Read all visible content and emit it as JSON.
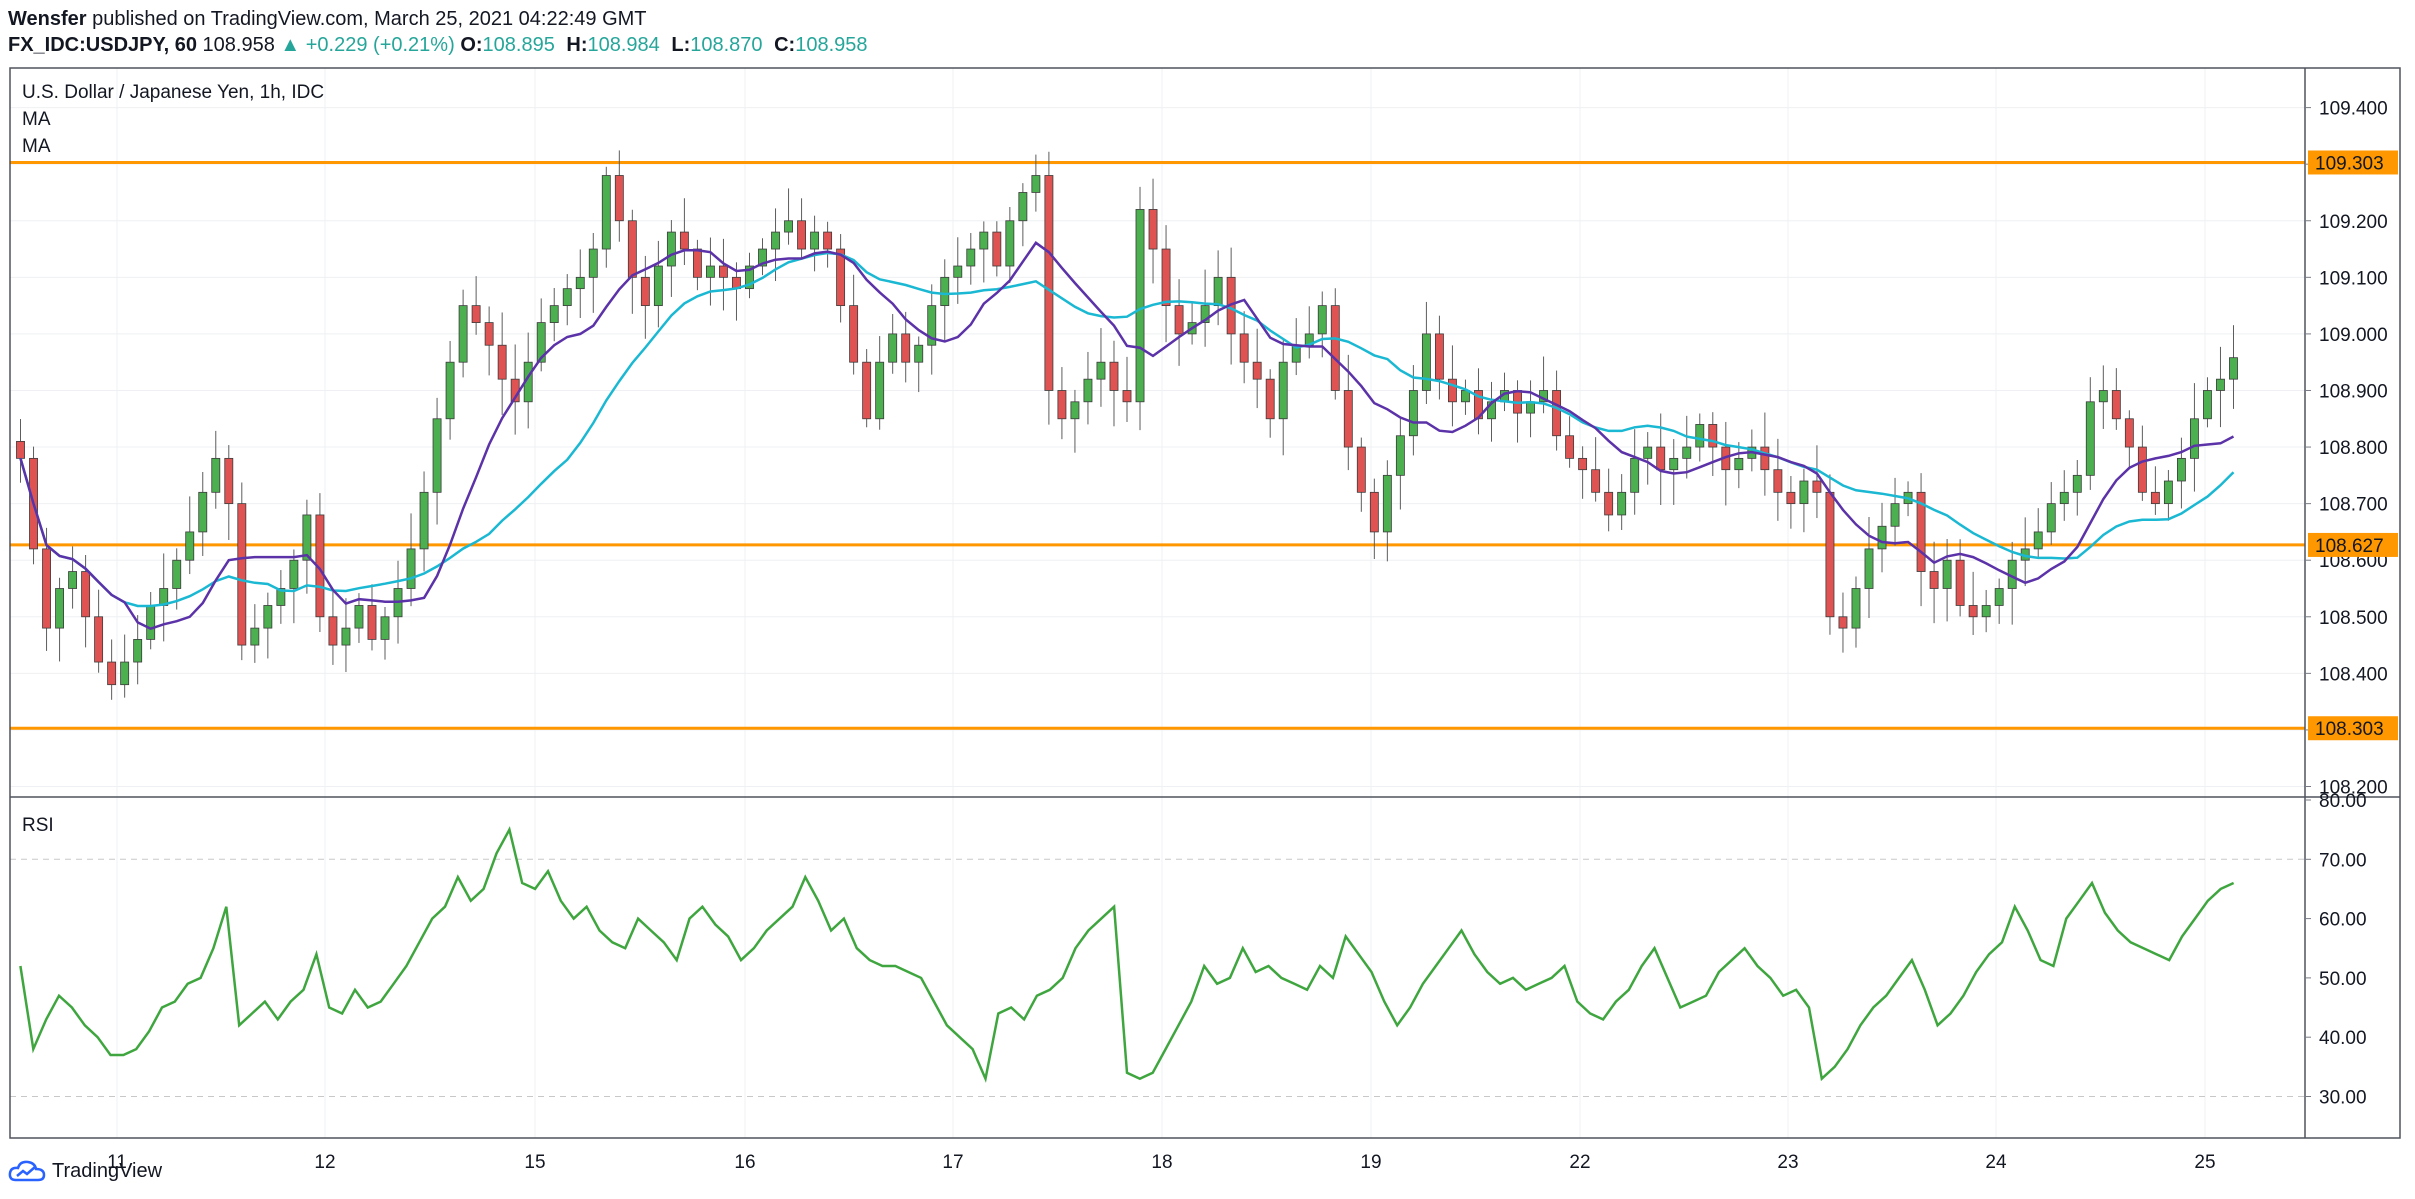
{
  "header": {
    "author": "Wensfer",
    "published_text": "published on TradingView.com, March 25, 2021 04:22:49 GMT",
    "symbol": "FX_IDC:USDJPY, 60",
    "last": "108.958",
    "change": "+0.229 (+0.21%)",
    "o_label": "O:",
    "o_value": "108.895",
    "h_label": "H:",
    "h_value": "108.984",
    "l_label": "L:",
    "l_value": "108.870",
    "c_label": "C:",
    "c_value": "108.958"
  },
  "legend": {
    "title": "U.S. Dollar / Japanese Yen, 1h, IDC",
    "ma1": "MA",
    "ma2": "MA",
    "rsi": "RSI"
  },
  "footer": {
    "brand": "TradingView"
  },
  "colors": {
    "up": "#4caf50",
    "down": "#e05353",
    "candle_border": "#5d5d5d",
    "ma_fast": "#5b32a8",
    "ma_slow": "#1ab8d2",
    "rsi": "#3fa63f",
    "level": "#ff9800",
    "grid": "#eef0f3"
  },
  "chart_data": [
    {
      "type": "candlestick",
      "title": "U.S. Dollar / Japanese Yen, 1h, IDC",
      "x_tick_labels": [
        "11",
        "12",
        "15",
        "16",
        "17",
        "18",
        "19",
        "22",
        "23",
        "24",
        "25"
      ],
      "y_tick_labels": [
        "109.400",
        "109.300",
        "109.200",
        "109.100",
        "109.000",
        "108.900",
        "108.800",
        "108.700",
        "108.600",
        "108.500",
        "108.400",
        "108.300",
        "108.200"
      ],
      "ylim": [
        108.185,
        109.47
      ],
      "horizontal_levels": [
        {
          "value": 109.303,
          "label": "109.303"
        },
        {
          "value": 108.627,
          "label": "108.627"
        },
        {
          "value": 108.303,
          "label": "108.303"
        }
      ],
      "close_series_approx": [
        108.78,
        108.62,
        108.48,
        108.55,
        108.58,
        108.5,
        108.42,
        108.38,
        108.42,
        108.46,
        108.52,
        108.55,
        108.6,
        108.65,
        108.72,
        108.78,
        108.7,
        108.45,
        108.48,
        108.52,
        108.55,
        108.6,
        108.68,
        108.5,
        108.45,
        108.48,
        108.52,
        108.46,
        108.5,
        108.55,
        108.62,
        108.72,
        108.85,
        108.95,
        109.05,
        109.02,
        108.98,
        108.92,
        108.88,
        108.95,
        109.02,
        109.05,
        109.08,
        109.1,
        109.15,
        109.28,
        109.2,
        109.1,
        109.05,
        109.12,
        109.18,
        109.15,
        109.1,
        109.12,
        109.1,
        109.08,
        109.12,
        109.15,
        109.18,
        109.2,
        109.15,
        109.18,
        109.15,
        109.05,
        108.95,
        108.85,
        108.95,
        109.0,
        108.95,
        108.98,
        109.05,
        109.1,
        109.12,
        109.15,
        109.18,
        109.12,
        109.2,
        109.25,
        109.28,
        108.9,
        108.85,
        108.88,
        108.92,
        108.95,
        108.9,
        108.88,
        109.22,
        109.15,
        109.05,
        109.0,
        109.02,
        109.05,
        109.1,
        109.0,
        108.95,
        108.92,
        108.85,
        108.95,
        108.98,
        109.0,
        109.05,
        108.9,
        108.8,
        108.72,
        108.65,
        108.75,
        108.82,
        108.9,
        109.0,
        108.92,
        108.88,
        108.9,
        108.85,
        108.88,
        108.9,
        108.86,
        108.88,
        108.9,
        108.82,
        108.78,
        108.76,
        108.72,
        108.68,
        108.72,
        108.78,
        108.8,
        108.76,
        108.78,
        108.8,
        108.84,
        108.8,
        108.76,
        108.78,
        108.8,
        108.76,
        108.72,
        108.7,
        108.74,
        108.72,
        108.5,
        108.48,
        108.55,
        108.62,
        108.66,
        108.7,
        108.72,
        108.58,
        108.55,
        108.6,
        108.52,
        108.5,
        108.52,
        108.55,
        108.6,
        108.62,
        108.65,
        108.7,
        108.72,
        108.75,
        108.88,
        108.9,
        108.85,
        108.8,
        108.72,
        108.7,
        108.74,
        108.78,
        108.85,
        108.9,
        108.92,
        108.958
      ],
      "rsi_ylim": [
        23,
        80
      ],
      "rsi_tick_labels": [
        "80.00",
        "70.00",
        "60.00",
        "50.00",
        "40.00",
        "30.00"
      ],
      "rsi_series_approx": [
        52,
        38,
        43,
        47,
        45,
        42,
        40,
        37,
        37,
        38,
        41,
        45,
        46,
        49,
        50,
        55,
        62,
        42,
        44,
        46,
        43,
        46,
        48,
        54,
        45,
        44,
        48,
        45,
        46,
        49,
        52,
        56,
        60,
        62,
        67,
        63,
        65,
        71,
        75,
        66,
        65,
        68,
        63,
        60,
        62,
        58,
        56,
        55,
        60,
        58,
        56,
        53,
        60,
        62,
        59,
        57,
        53,
        55,
        58,
        60,
        62,
        67,
        63,
        58,
        60,
        55,
        53,
        52,
        52,
        51,
        50,
        46,
        42,
        40,
        38,
        33,
        44,
        45,
        43,
        47,
        48,
        50,
        55,
        58,
        60,
        62,
        34,
        33,
        34,
        38,
        42,
        46,
        52,
        49,
        50,
        55,
        51,
        52,
        50,
        49,
        48,
        52,
        50,
        57,
        54,
        51,
        46,
        42,
        45,
        49,
        52,
        55,
        58,
        54,
        51,
        49,
        50,
        48,
        49,
        50,
        52,
        46,
        44,
        43,
        46,
        48,
        52,
        55,
        50,
        45,
        46,
        47,
        51,
        53,
        55,
        52,
        50,
        47,
        48,
        45,
        33,
        35,
        38,
        42,
        45,
        47,
        50,
        53,
        48,
        42,
        44,
        47,
        51,
        54,
        56,
        62,
        58,
        53,
        52,
        60,
        63,
        66,
        61,
        58,
        56,
        55,
        54,
        53,
        57,
        60,
        63,
        65,
        66
      ]
    }
  ]
}
